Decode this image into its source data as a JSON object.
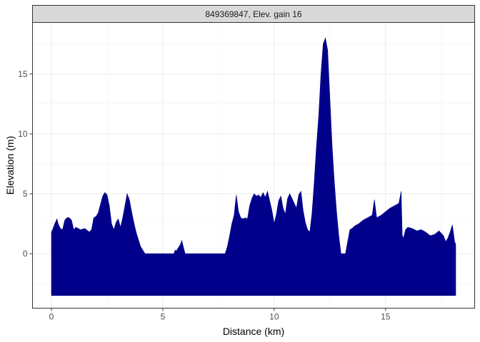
{
  "chart_data": {
    "type": "area",
    "facet_label": "849369847, Elev. gain 16",
    "xlabel": "Distance (km)",
    "ylabel": "Elevation (m)",
    "xlim": [
      -0.85,
      19.0
    ],
    "ylim": [
      -4.55,
      19.3
    ],
    "baseline": -3.5,
    "x_ticks": [
      0,
      5,
      10,
      15
    ],
    "y_ticks": [
      0,
      5,
      10,
      15
    ],
    "x_tick_labels": [
      "0",
      "5",
      "10",
      "15"
    ],
    "y_tick_labels": [
      "0",
      "5",
      "10",
      "15"
    ],
    "grid": true,
    "fill_color": "#00008B",
    "series": [
      {
        "x": [
          0.0,
          0.05,
          0.15,
          0.25,
          0.3,
          0.4,
          0.5,
          0.6,
          0.7,
          0.8,
          0.9,
          1.0,
          1.1,
          1.2,
          1.3,
          1.5,
          1.7,
          1.8,
          1.9,
          2.0,
          2.1,
          2.2,
          2.3,
          2.4,
          2.5,
          2.6,
          2.7,
          2.8,
          2.9,
          3.0,
          3.1,
          3.2,
          3.3,
          3.4,
          3.5,
          3.6,
          3.7,
          3.8,
          3.9,
          4.0,
          4.2,
          5.0,
          5.5,
          5.55,
          5.6,
          5.7,
          5.8,
          5.85,
          6.0,
          7.0,
          7.8,
          7.9,
          8.0,
          8.1,
          8.2,
          8.3,
          8.4,
          8.5,
          8.6,
          8.7,
          8.8,
          8.9,
          9.0,
          9.1,
          9.2,
          9.3,
          9.4,
          9.5,
          9.6,
          9.7,
          9.8,
          9.9,
          10.0,
          10.1,
          10.2,
          10.3,
          10.4,
          10.5,
          10.6,
          10.7,
          10.8,
          10.9,
          11.0,
          11.1,
          11.2,
          11.3,
          11.4,
          11.5,
          11.6,
          11.7,
          11.8,
          11.9,
          12.0,
          12.1,
          12.2,
          12.3,
          12.4,
          12.5,
          12.6,
          12.7,
          12.8,
          12.9,
          13.0,
          13.1,
          13.2,
          13.3,
          13.4,
          13.5,
          13.6,
          13.8,
          14.0,
          14.2,
          14.4,
          14.5,
          14.6,
          14.7,
          14.8,
          15.0,
          15.2,
          15.4,
          15.6,
          15.7,
          15.75,
          15.8,
          15.9,
          16.0,
          16.2,
          16.4,
          16.6,
          16.8,
          17.0,
          17.2,
          17.4,
          17.6,
          17.7,
          17.8,
          17.9,
          18.0,
          18.1,
          18.15
        ],
        "y": [
          1.8,
          2.0,
          2.5,
          2.9,
          2.5,
          2.1,
          2.0,
          2.8,
          3.0,
          3.0,
          2.8,
          2.0,
          2.2,
          2.1,
          2.0,
          2.1,
          1.8,
          2.0,
          3.0,
          3.1,
          3.4,
          4.1,
          4.8,
          5.1,
          4.9,
          4.0,
          2.5,
          2.0,
          2.6,
          2.9,
          2.2,
          3.0,
          4.0,
          5.0,
          4.5,
          3.5,
          2.6,
          1.8,
          1.2,
          0.6,
          0.0,
          0.0,
          0.0,
          0.3,
          0.2,
          0.5,
          0.8,
          1.1,
          0.0,
          0.0,
          0.0,
          0.6,
          1.5,
          2.5,
          3.2,
          4.9,
          3.5,
          3.0,
          2.9,
          3.0,
          2.9,
          4.0,
          4.6,
          5.0,
          4.8,
          4.9,
          4.7,
          5.1,
          4.7,
          5.2,
          4.4,
          3.6,
          2.5,
          3.3,
          4.4,
          4.8,
          3.8,
          3.3,
          4.6,
          5.0,
          4.6,
          4.2,
          3.8,
          4.9,
          5.2,
          3.6,
          2.6,
          2.0,
          1.8,
          3.4,
          6.0,
          9.0,
          11.5,
          15.0,
          17.5,
          18.0,
          17.0,
          13.0,
          9.0,
          6.0,
          3.5,
          1.5,
          0.0,
          0.0,
          0.0,
          1.0,
          2.0,
          2.1,
          2.3,
          2.5,
          2.8,
          3.0,
          3.2,
          4.5,
          3.0,
          3.1,
          3.2,
          3.5,
          3.8,
          4.0,
          4.2,
          5.2,
          1.5,
          1.3,
          2.0,
          2.2,
          2.1,
          1.9,
          2.0,
          1.8,
          1.5,
          1.6,
          1.9,
          1.5,
          1.0,
          1.3,
          1.8,
          2.4,
          1.0,
          0.8
        ]
      }
    ]
  }
}
